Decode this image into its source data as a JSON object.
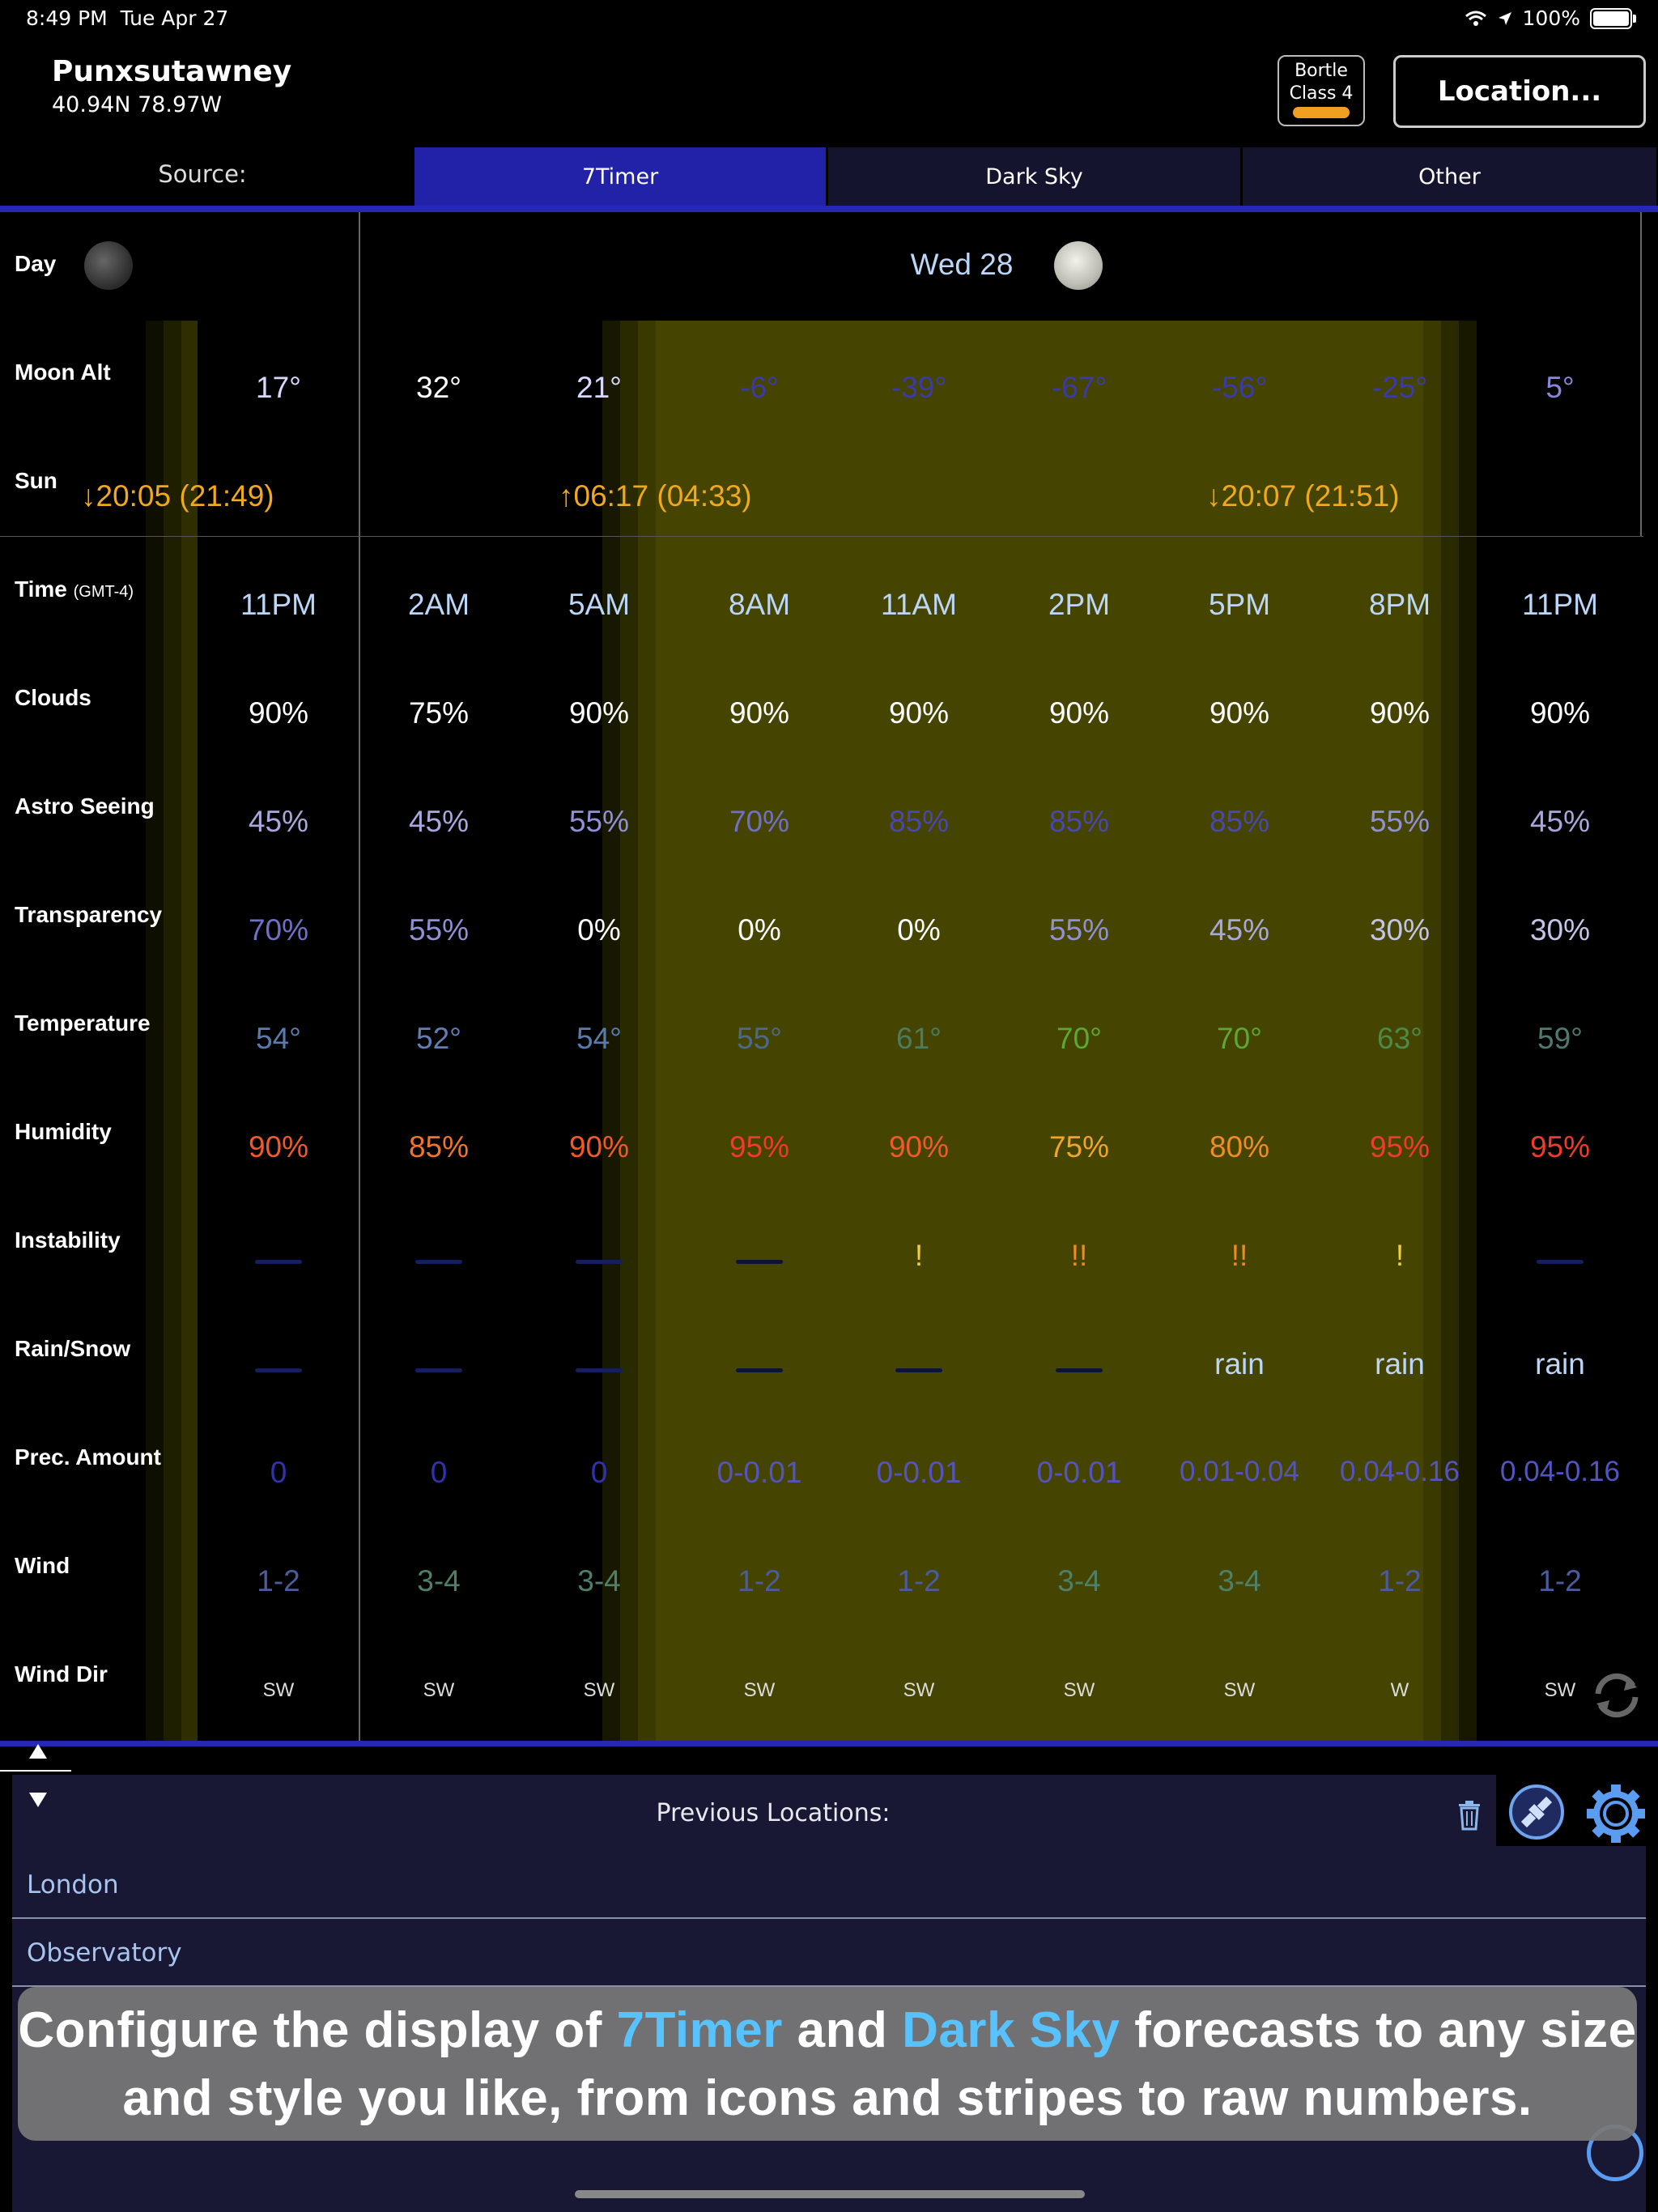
{
  "status_bar": {
    "time": "8:49 PM",
    "date": "Tue Apr 27",
    "battery": "100%"
  },
  "location": {
    "name": "Punxsutawney",
    "coords": "40.94N 78.97W"
  },
  "bortle": {
    "line1": "Bortle",
    "line2": "Class 4",
    "color": "#f0a020"
  },
  "location_button": "Location...",
  "source": {
    "label": "Source:",
    "tabs": [
      {
        "label": "7Timer",
        "selected": true
      },
      {
        "label": "Dark Sky",
        "selected": false
      },
      {
        "label": "Other",
        "selected": false
      }
    ]
  },
  "day_header": {
    "label": "Day",
    "date": "Wed 28"
  },
  "row_labels": {
    "moon_alt": "Moon Alt",
    "sun": "Sun",
    "time": "Time",
    "time_tz": "(GMT-4)",
    "clouds": "Clouds",
    "seeing": "Astro Seeing",
    "transparency": "Transparency",
    "temperature": "Temperature",
    "humidity": "Humidity",
    "instability": "Instability",
    "rain_snow": "Rain/Snow",
    "prec_amount": "Prec. Amount",
    "wind": "Wind",
    "wind_dir": "Wind Dir"
  },
  "sun_events": {
    "set_today": "↓20:05 (21:49)",
    "rise": "↑06:17 (04:33)",
    "set_tomorrow": "↓20:07 (21:51)"
  },
  "columns": [
    {
      "moon": "17°",
      "time": "11PM",
      "clouds": "90%",
      "seeing": "45%",
      "transparency": "70%",
      "temp": "54°",
      "humidity": "90%",
      "instability": "—",
      "rain": "—",
      "prec": "0",
      "wind": "1-2",
      "wind_dir": "SW"
    },
    {
      "moon": "32°",
      "time": "2AM",
      "clouds": "75%",
      "seeing": "45%",
      "transparency": "55%",
      "temp": "52°",
      "humidity": "85%",
      "instability": "—",
      "rain": "—",
      "prec": "0",
      "wind": "3-4",
      "wind_dir": "SW"
    },
    {
      "moon": "21°",
      "time": "5AM",
      "clouds": "90%",
      "seeing": "55%",
      "transparency": "0%",
      "temp": "54°",
      "humidity": "90%",
      "instability": "—",
      "rain": "—",
      "prec": "0",
      "wind": "3-4",
      "wind_dir": "SW"
    },
    {
      "moon": "-6°",
      "time": "8AM",
      "clouds": "90%",
      "seeing": "70%",
      "transparency": "0%",
      "temp": "55°",
      "humidity": "95%",
      "instability": "—",
      "rain": "—",
      "prec": "0-0.01",
      "wind": "1-2",
      "wind_dir": "SW"
    },
    {
      "moon": "-39°",
      "time": "11AM",
      "clouds": "90%",
      "seeing": "85%",
      "transparency": "0%",
      "temp": "61°",
      "humidity": "90%",
      "instability": "!",
      "rain": "—",
      "prec": "0-0.01",
      "wind": "1-2",
      "wind_dir": "SW"
    },
    {
      "moon": "-67°",
      "time": "2PM",
      "clouds": "90%",
      "seeing": "85%",
      "transparency": "55%",
      "temp": "70°",
      "humidity": "75%",
      "instability": "!!",
      "rain": "—",
      "prec": "0-0.01",
      "wind": "3-4",
      "wind_dir": "SW"
    },
    {
      "moon": "-56°",
      "time": "5PM",
      "clouds": "90%",
      "seeing": "85%",
      "transparency": "45%",
      "temp": "70°",
      "humidity": "80%",
      "instability": "!!",
      "rain": "rain",
      "prec": "0.01-0.04",
      "wind": "3-4",
      "wind_dir": "SW"
    },
    {
      "moon": "-25°",
      "time": "8PM",
      "clouds": "90%",
      "seeing": "55%",
      "transparency": "30%",
      "temp": "63°",
      "humidity": "95%",
      "instability": "!",
      "rain": "rain",
      "prec": "0.04-0.16",
      "wind": "1-2",
      "wind_dir": "W"
    },
    {
      "moon": "5°",
      "time": "11PM",
      "clouds": "90%",
      "seeing": "45%",
      "transparency": "30%",
      "temp": "59°",
      "humidity": "95%",
      "instability": "—",
      "rain": "rain",
      "prec": "0.04-0.16",
      "wind": "1-2",
      "wind_dir": "SW"
    }
  ],
  "colors": {
    "accent": "#2727b6",
    "tab_selected": "#2222a8",
    "tab_unselected": "#14142e",
    "daylight": "#454400",
    "sun_text": "#f0a81c",
    "time_text": "#bcd6f8"
  },
  "previous_locations": {
    "title": "Previous Locations:",
    "items": [
      "London",
      "Observatory"
    ]
  },
  "icons": [
    "wifi-icon",
    "location-arrow-icon",
    "battery-icon",
    "moon-icon",
    "trash-icon",
    "satellite-icon",
    "gear-icon",
    "refresh-icon",
    "arrow-up-icon",
    "arrow-down-icon"
  ],
  "overlay": {
    "pre": "Configure the display of ",
    "hl1": "7Timer",
    "mid": " and ",
    "hl2": "Dark Sky",
    "post": " forecasts to any size and style you like, from icons and stripes to raw numbers."
  }
}
